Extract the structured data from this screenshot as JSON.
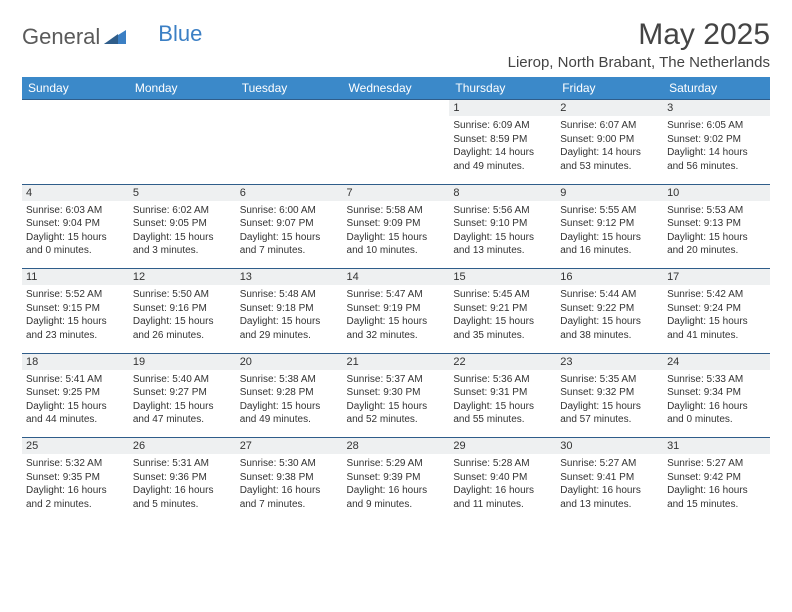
{
  "brand": {
    "part1": "General",
    "part2": "Blue"
  },
  "title": "May 2025",
  "location": "Lierop, North Brabant, The Netherlands",
  "colors": {
    "header_bg": "#3b89c9",
    "daynum_bg": "#eef0f1",
    "rule": "#2f5d8a",
    "logo_gray": "#5a5a5a",
    "logo_blue": "#3b7fc4"
  },
  "weekdays": [
    "Sunday",
    "Monday",
    "Tuesday",
    "Wednesday",
    "Thursday",
    "Friday",
    "Saturday"
  ],
  "weeks": [
    {
      "nums": [
        "",
        "",
        "",
        "",
        "1",
        "2",
        "3"
      ],
      "cells": [
        null,
        null,
        null,
        null,
        {
          "sr": "6:09 AM",
          "ss": "8:59 PM",
          "dl": "14 hours and 49 minutes."
        },
        {
          "sr": "6:07 AM",
          "ss": "9:00 PM",
          "dl": "14 hours and 53 minutes."
        },
        {
          "sr": "6:05 AM",
          "ss": "9:02 PM",
          "dl": "14 hours and 56 minutes."
        }
      ]
    },
    {
      "nums": [
        "4",
        "5",
        "6",
        "7",
        "8",
        "9",
        "10"
      ],
      "cells": [
        {
          "sr": "6:03 AM",
          "ss": "9:04 PM",
          "dl": "15 hours and 0 minutes."
        },
        {
          "sr": "6:02 AM",
          "ss": "9:05 PM",
          "dl": "15 hours and 3 minutes."
        },
        {
          "sr": "6:00 AM",
          "ss": "9:07 PM",
          "dl": "15 hours and 7 minutes."
        },
        {
          "sr": "5:58 AM",
          "ss": "9:09 PM",
          "dl": "15 hours and 10 minutes."
        },
        {
          "sr": "5:56 AM",
          "ss": "9:10 PM",
          "dl": "15 hours and 13 minutes."
        },
        {
          "sr": "5:55 AM",
          "ss": "9:12 PM",
          "dl": "15 hours and 16 minutes."
        },
        {
          "sr": "5:53 AM",
          "ss": "9:13 PM",
          "dl": "15 hours and 20 minutes."
        }
      ]
    },
    {
      "nums": [
        "11",
        "12",
        "13",
        "14",
        "15",
        "16",
        "17"
      ],
      "cells": [
        {
          "sr": "5:52 AM",
          "ss": "9:15 PM",
          "dl": "15 hours and 23 minutes."
        },
        {
          "sr": "5:50 AM",
          "ss": "9:16 PM",
          "dl": "15 hours and 26 minutes."
        },
        {
          "sr": "5:48 AM",
          "ss": "9:18 PM",
          "dl": "15 hours and 29 minutes."
        },
        {
          "sr": "5:47 AM",
          "ss": "9:19 PM",
          "dl": "15 hours and 32 minutes."
        },
        {
          "sr": "5:45 AM",
          "ss": "9:21 PM",
          "dl": "15 hours and 35 minutes."
        },
        {
          "sr": "5:44 AM",
          "ss": "9:22 PM",
          "dl": "15 hours and 38 minutes."
        },
        {
          "sr": "5:42 AM",
          "ss": "9:24 PM",
          "dl": "15 hours and 41 minutes."
        }
      ]
    },
    {
      "nums": [
        "18",
        "19",
        "20",
        "21",
        "22",
        "23",
        "24"
      ],
      "cells": [
        {
          "sr": "5:41 AM",
          "ss": "9:25 PM",
          "dl": "15 hours and 44 minutes."
        },
        {
          "sr": "5:40 AM",
          "ss": "9:27 PM",
          "dl": "15 hours and 47 minutes."
        },
        {
          "sr": "5:38 AM",
          "ss": "9:28 PM",
          "dl": "15 hours and 49 minutes."
        },
        {
          "sr": "5:37 AM",
          "ss": "9:30 PM",
          "dl": "15 hours and 52 minutes."
        },
        {
          "sr": "5:36 AM",
          "ss": "9:31 PM",
          "dl": "15 hours and 55 minutes."
        },
        {
          "sr": "5:35 AM",
          "ss": "9:32 PM",
          "dl": "15 hours and 57 minutes."
        },
        {
          "sr": "5:33 AM",
          "ss": "9:34 PM",
          "dl": "16 hours and 0 minutes."
        }
      ]
    },
    {
      "nums": [
        "25",
        "26",
        "27",
        "28",
        "29",
        "30",
        "31"
      ],
      "cells": [
        {
          "sr": "5:32 AM",
          "ss": "9:35 PM",
          "dl": "16 hours and 2 minutes."
        },
        {
          "sr": "5:31 AM",
          "ss": "9:36 PM",
          "dl": "16 hours and 5 minutes."
        },
        {
          "sr": "5:30 AM",
          "ss": "9:38 PM",
          "dl": "16 hours and 7 minutes."
        },
        {
          "sr": "5:29 AM",
          "ss": "9:39 PM",
          "dl": "16 hours and 9 minutes."
        },
        {
          "sr": "5:28 AM",
          "ss": "9:40 PM",
          "dl": "16 hours and 11 minutes."
        },
        {
          "sr": "5:27 AM",
          "ss": "9:41 PM",
          "dl": "16 hours and 13 minutes."
        },
        {
          "sr": "5:27 AM",
          "ss": "9:42 PM",
          "dl": "16 hours and 15 minutes."
        }
      ]
    }
  ],
  "labels": {
    "sunrise": "Sunrise:",
    "sunset": "Sunset:",
    "daylight": "Daylight:"
  }
}
